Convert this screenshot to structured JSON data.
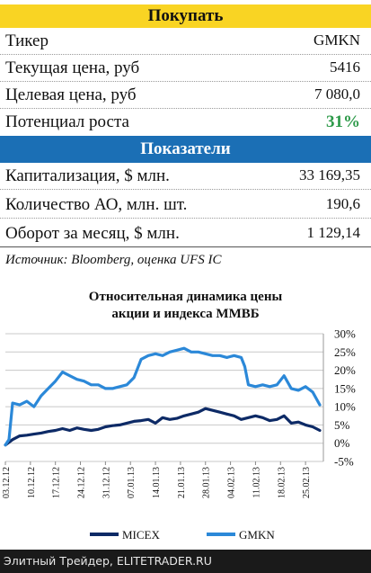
{
  "buy_header": "Покупать",
  "buy_rows": [
    {
      "label": "Тикер",
      "value": "GMKN"
    },
    {
      "label": "Текущая цена, руб",
      "value": "5416"
    },
    {
      "label": "Целевая цена, руб",
      "value": "7 080,0"
    },
    {
      "label": "Потенциал роста",
      "value": "31%"
    }
  ],
  "indicators_header": "Показатели",
  "indicator_rows": [
    {
      "label": "Капитализация, $ млн.",
      "value": "33 169,35"
    },
    {
      "label": "Количество АО, млн. шт.",
      "value": "190,6"
    },
    {
      "label": "Оборот за месяц, $ млн.",
      "value": "1 129,14"
    }
  ],
  "source": "Источник: Bloomberg, оценка UFS IC",
  "colors": {
    "micex": "#0d2a66",
    "gmkn": "#2b88d8",
    "potential": "#2e9a4a",
    "buy_bar": "#f9d423",
    "ind_bar": "#1b6fb5"
  },
  "chart_data": {
    "type": "line",
    "title_line1": "Относительная динамика цены",
    "title_line2": "акции и индекса ММВБ",
    "ylim": [
      -5,
      30
    ],
    "y_ticks": [
      "30%",
      "25%",
      "20%",
      "15%",
      "10%",
      "5%",
      "0%",
      "-5%"
    ],
    "y_tick_values": [
      30,
      25,
      20,
      15,
      10,
      5,
      0,
      -5
    ],
    "x_tick_labels": [
      "03.12.12",
      "10.12.12",
      "17.12.12",
      "24.12.12",
      "31.12.12",
      "07.01.13",
      "14.01.13",
      "21.01.13",
      "28.01.13",
      "04.02.13",
      "11.02.13",
      "18.02.13",
      "25.02.13"
    ],
    "x_tick_days": [
      0,
      7,
      14,
      21,
      28,
      35,
      42,
      49,
      56,
      63,
      70,
      77,
      84
    ],
    "grid": true,
    "legend_position": "bottom",
    "series": [
      {
        "name": "MICEX",
        "color": "#0d2a66",
        "x": [
          0,
          2,
          4,
          6,
          8,
          10,
          12,
          14,
          16,
          18,
          20,
          22,
          24,
          26,
          28,
          30,
          32,
          34,
          36,
          38,
          40,
          42,
          44,
          46,
          48,
          50,
          52,
          54,
          56,
          58,
          60,
          62,
          64,
          66,
          68,
          70,
          72,
          74,
          76,
          78,
          80,
          82,
          84,
          86,
          88
        ],
        "y": [
          -0.5,
          1,
          2,
          2.2,
          2.5,
          2.8,
          3.2,
          3.5,
          4,
          3.5,
          4.2,
          3.8,
          3.5,
          3.8,
          4.5,
          4.8,
          5,
          5.5,
          6,
          6.2,
          6.5,
          5.5,
          7,
          6.5,
          6.8,
          7.5,
          8,
          8.5,
          9.5,
          9,
          8.5,
          8,
          7.5,
          6.5,
          7,
          7.5,
          7,
          6.2,
          6.5,
          7.5,
          5.5,
          5.8,
          5,
          4.5,
          3.5
        ]
      },
      {
        "name": "GMKN",
        "color": "#2b88d8",
        "x": [
          0,
          1,
          2,
          4,
          6,
          8,
          10,
          12,
          14,
          16,
          18,
          20,
          22,
          24,
          26,
          28,
          30,
          32,
          34,
          36,
          38,
          40,
          42,
          44,
          46,
          48,
          50,
          52,
          54,
          56,
          58,
          60,
          62,
          64,
          66,
          67,
          68,
          70,
          72,
          74,
          76,
          78,
          80,
          82,
          84,
          86,
          88
        ],
        "y": [
          -0.5,
          1,
          11,
          10.5,
          11.5,
          10,
          13,
          15,
          17,
          19.5,
          18.5,
          17.5,
          17,
          16,
          16,
          15,
          15,
          15.5,
          16,
          18,
          23,
          24,
          24.5,
          24,
          25,
          25.5,
          26,
          25,
          25,
          24.5,
          24,
          24,
          23.5,
          24,
          23.5,
          21,
          16,
          15.5,
          16,
          15.5,
          16,
          18.5,
          15,
          14.5,
          15.5,
          14,
          10.5
        ]
      }
    ]
  },
  "footer": "Элитный Трейдер, ELITETRADER.RU"
}
